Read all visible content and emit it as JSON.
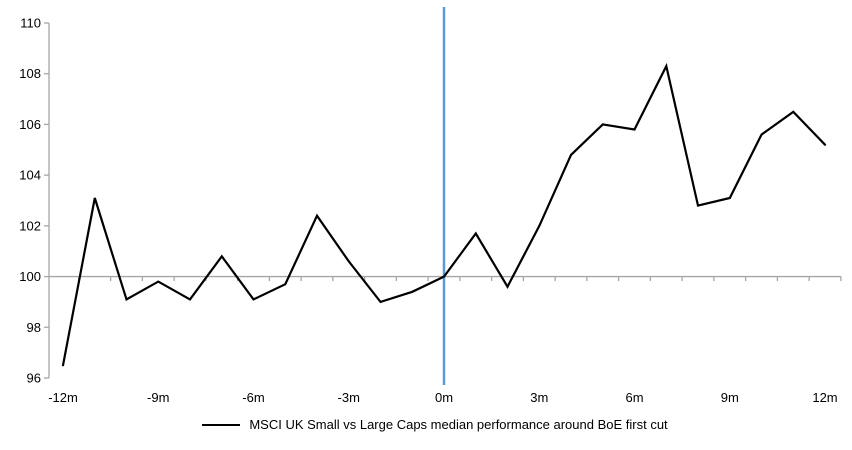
{
  "chart_data": {
    "type": "line",
    "title": "",
    "xlabel": "",
    "ylabel": "",
    "x": [
      -12,
      -11,
      -10,
      -9,
      -8,
      -7,
      -6,
      -5,
      -4,
      -3,
      -2,
      -1,
      0,
      1,
      2,
      3,
      4,
      5,
      6,
      7,
      8,
      9,
      10,
      11,
      12
    ],
    "series": [
      {
        "name": "MSCI UK Small vs Large Caps median performance around BoE first cut",
        "color": "#000000",
        "values": [
          96.5,
          103.1,
          99.1,
          99.8,
          99.1,
          100.8,
          99.1,
          99.7,
          102.4,
          100.6,
          99.0,
          99.4,
          100.0,
          101.7,
          99.6,
          102.0,
          104.8,
          106.0,
          105.8,
          108.3,
          102.8,
          103.1,
          105.6,
          106.5,
          105.2
        ]
      }
    ],
    "ylim": [
      96,
      110
    ],
    "y_ticks": [
      96,
      98,
      100,
      102,
      104,
      106,
      108,
      110
    ],
    "x_tick_months": [
      -12,
      -9,
      -6,
      -3,
      0,
      3,
      6,
      9,
      12
    ],
    "x_tick_labels": [
      "-12m",
      "-9m",
      "-6m",
      "-3m",
      "0m",
      "3m",
      "6m",
      "9m",
      "12m"
    ],
    "baseline_value": 100,
    "event_line_x": 0,
    "event_line_color": "#5B9BD5",
    "axis_color": "#A6A6A6",
    "grid": "baseline-only",
    "legend_position": "bottom"
  }
}
